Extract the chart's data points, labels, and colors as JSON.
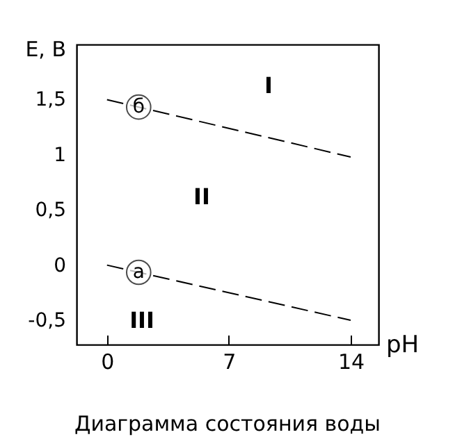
{
  "chart_data": {
    "type": "line",
    "title": "Диаграмма состояния воды",
    "xlabel": "pH",
    "ylabel": "E, B",
    "x": [
      0,
      14
    ],
    "series": [
      {
        "name": "б",
        "color": "#000000",
        "values": [
          1.5,
          0.98
        ]
      },
      {
        "name": "а",
        "color": "#000000",
        "values": [
          0,
          -0.5
        ]
      }
    ],
    "xlim": [
      -1.75,
      15.6
    ],
    "xticks": [
      0,
      7,
      14
    ],
    "ylim": [
      -0.72,
      2.0
    ],
    "yticks": [
      {
        "value": -0.5,
        "label": "-0,5"
      },
      0,
      {
        "value": 0.5,
        "label": "0,5"
      },
      1,
      {
        "value": 1.5,
        "label": "1,5"
      }
    ],
    "annotations": [
      "I",
      "II",
      "III"
    ],
    "line_style": "dashed",
    "marker": "none",
    "grid": false,
    "legend": false
  }
}
